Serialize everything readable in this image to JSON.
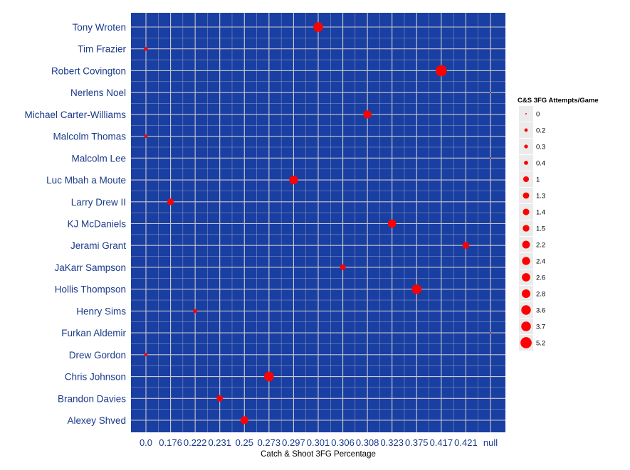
{
  "chart_data": {
    "type": "scatter",
    "title": "",
    "xlabel": "Catch & Shoot 3FG Percentage",
    "ylabel": "",
    "x_categories": [
      "0.0",
      "0.176",
      "0.222",
      "0.231",
      "0.25",
      "0.273",
      "0.297",
      "0.301",
      "0.306",
      "0.308",
      "0.323",
      "0.375",
      "0.417",
      "0.421",
      "null"
    ],
    "y_categories": [
      "Tony Wroten",
      "Tim Frazier",
      "Robert Covington",
      "Nerlens Noel",
      "Michael Carter-Williams",
      "Malcolm Thomas",
      "Malcolm Lee",
      "Luc Mbah a Moute",
      "Larry Drew II",
      "KJ McDaniels",
      "Jerami Grant",
      "JaKarr Sampson",
      "Hollis Thompson",
      "Henry Sims",
      "Furkan Aldemir",
      "Drew Gordon",
      "Chris Johnson",
      "Brandon Davies",
      "Alexey Shved"
    ],
    "points": [
      {
        "player": "Tony Wroten",
        "x": "0.301",
        "size": 3.7
      },
      {
        "player": "Tim Frazier",
        "x": "0.0",
        "size": 0.3
      },
      {
        "player": "Robert Covington",
        "x": "0.417",
        "size": 5.2
      },
      {
        "player": "Nerlens Noel",
        "x": "null",
        "size": 0
      },
      {
        "player": "Michael Carter-Williams",
        "x": "0.308",
        "size": 2.4
      },
      {
        "player": "Malcolm Thomas",
        "x": "0.0",
        "size": 0.2
      },
      {
        "player": "Malcolm Lee",
        "x": "null",
        "size": 0
      },
      {
        "player": "Luc Mbah a Moute",
        "x": "0.297",
        "size": 2.8
      },
      {
        "player": "Larry Drew II",
        "x": "0.176",
        "size": 1.4
      },
      {
        "player": "KJ McDaniels",
        "x": "0.323",
        "size": 2.6
      },
      {
        "player": "Jerami Grant",
        "x": "0.421",
        "size": 1.5
      },
      {
        "player": "JaKarr Sampson",
        "x": "0.306",
        "size": 1
      },
      {
        "player": "Hollis Thompson",
        "x": "0.375",
        "size": 3.6
      },
      {
        "player": "Henry Sims",
        "x": "0.222",
        "size": 0.4
      },
      {
        "player": "Furkan Aldemir",
        "x": "null",
        "size": 0
      },
      {
        "player": "Drew Gordon",
        "x": "0.0",
        "size": 0.2
      },
      {
        "player": "Chris Johnson",
        "x": "0.273",
        "size": 3.7
      },
      {
        "player": "Brandon Davies",
        "x": "0.231",
        "size": 1.3
      },
      {
        "player": "Alexey Shved",
        "x": "0.25",
        "size": 2.2
      }
    ],
    "legend": {
      "title": "C&S 3FG Attempts/Game",
      "placement": "right",
      "entries": [
        {
          "label": "0",
          "size": 0
        },
        {
          "label": "0.2",
          "size": 0.2
        },
        {
          "label": "0.3",
          "size": 0.3
        },
        {
          "label": "0.4",
          "size": 0.4
        },
        {
          "label": "1",
          "size": 1
        },
        {
          "label": "1.3",
          "size": 1.3
        },
        {
          "label": "1.4",
          "size": 1.4
        },
        {
          "label": "1.5",
          "size": 1.5
        },
        {
          "label": "2.2",
          "size": 2.2
        },
        {
          "label": "2.4",
          "size": 2.4
        },
        {
          "label": "2.6",
          "size": 2.6
        },
        {
          "label": "2.8",
          "size": 2.8
        },
        {
          "label": "3.6",
          "size": 3.6
        },
        {
          "label": "3.7",
          "size": 3.7
        },
        {
          "label": "5.2",
          "size": 5.2
        }
      ]
    },
    "grid": true,
    "colors": {
      "panel": "#1a3fa3",
      "grid": "#c9c9c9",
      "point": "#ff0000",
      "tick_label": "#1a3a8a",
      "legend_key_bg": "#ebebeb"
    }
  }
}
